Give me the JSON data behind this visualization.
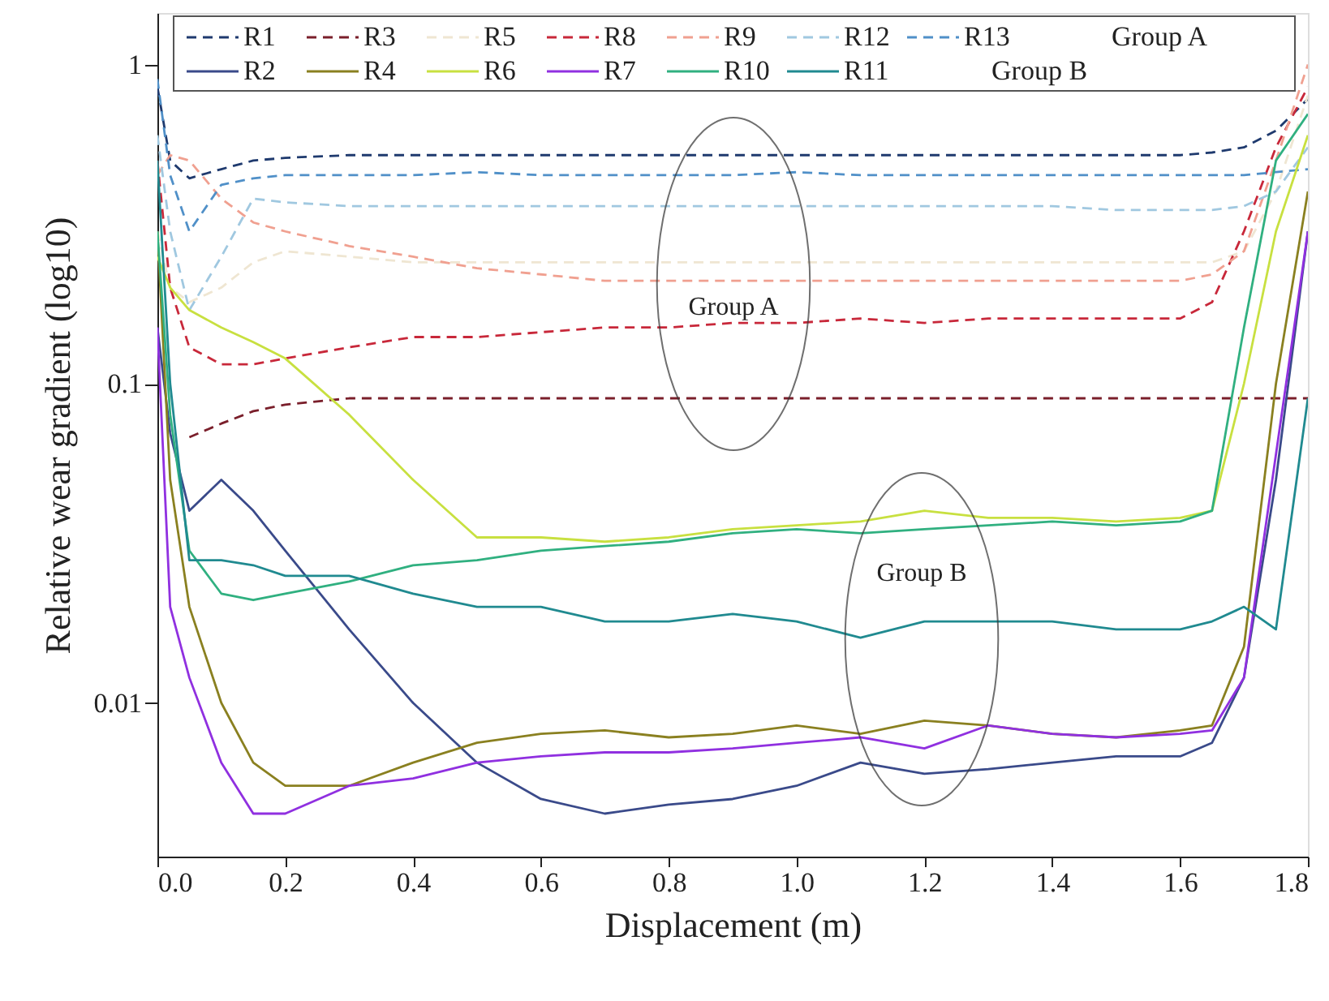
{
  "chart_data": {
    "type": "line",
    "xlabel": "Displacement (m)",
    "ylabel": "Relative wear gradient (log10)",
    "x": [
      0,
      0.02,
      0.05,
      0.1,
      0.15,
      0.2,
      0.3,
      0.4,
      0.5,
      0.6,
      0.7,
      0.8,
      0.9,
      1.0,
      1.1,
      1.2,
      1.3,
      1.4,
      1.5,
      1.6,
      1.65,
      1.7,
      1.75,
      1.8
    ],
    "series": [
      {
        "name": "R1",
        "color": "#1f3a6e",
        "line_style": "dashed",
        "values": [
          0.85,
          0.5,
          0.44,
          0.47,
          0.5,
          0.51,
          0.52,
          0.52,
          0.52,
          0.52,
          0.52,
          0.52,
          0.52,
          0.52,
          0.52,
          0.52,
          0.52,
          0.52,
          0.52,
          0.52,
          0.53,
          0.55,
          0.62,
          0.78
        ]
      },
      {
        "name": "R3",
        "color": "#7a1f2b",
        "line_style": "dashed",
        "values": [
          null,
          null,
          0.068,
          0.075,
          0.082,
          0.086,
          0.09,
          0.09,
          0.09,
          0.09,
          0.09,
          0.09,
          0.09,
          0.09,
          0.09,
          0.09,
          0.09,
          0.09,
          0.09,
          0.09,
          0.09,
          0.09,
          0.09,
          0.09
        ]
      },
      {
        "name": "R5",
        "color": "#efe6d2",
        "line_style": "dashed",
        "values": [
          0.3,
          0.2,
          0.18,
          0.2,
          0.24,
          0.26,
          0.25,
          0.24,
          0.24,
          0.24,
          0.24,
          0.24,
          0.24,
          0.24,
          0.24,
          0.24,
          0.24,
          0.24,
          0.24,
          0.24,
          0.24,
          0.26,
          0.4,
          0.8
        ]
      },
      {
        "name": "R8",
        "color": "#c8283a",
        "line_style": "dashed",
        "values": [
          0.5,
          0.2,
          0.13,
          0.115,
          0.115,
          0.12,
          0.13,
          0.14,
          0.14,
          0.145,
          0.15,
          0.15,
          0.155,
          0.155,
          0.16,
          0.155,
          0.16,
          0.16,
          0.16,
          0.16,
          0.18,
          0.3,
          0.55,
          0.85
        ]
      },
      {
        "name": "R9",
        "color": "#f0a090",
        "line_style": "dashed",
        "values": [
          0.45,
          0.52,
          0.5,
          0.38,
          0.32,
          0.3,
          0.27,
          0.25,
          0.23,
          0.22,
          0.21,
          0.21,
          0.21,
          0.21,
          0.21,
          0.21,
          0.21,
          0.21,
          0.21,
          0.21,
          0.22,
          0.26,
          0.5,
          1.0
        ]
      },
      {
        "name": "R12",
        "color": "#a0c8e0",
        "line_style": "dashed",
        "values": [
          0.6,
          0.3,
          0.17,
          0.25,
          0.38,
          0.37,
          0.36,
          0.36,
          0.36,
          0.36,
          0.36,
          0.36,
          0.36,
          0.36,
          0.36,
          0.36,
          0.36,
          0.36,
          0.35,
          0.35,
          0.35,
          0.36,
          0.4,
          0.55
        ]
      },
      {
        "name": "R13",
        "color": "#5090c8",
        "line_style": "dashed",
        "values": [
          0.9,
          0.45,
          0.3,
          0.42,
          0.44,
          0.45,
          0.45,
          0.45,
          0.46,
          0.45,
          0.45,
          0.45,
          0.45,
          0.46,
          0.45,
          0.45,
          0.45,
          0.45,
          0.45,
          0.45,
          0.45,
          0.45,
          0.46,
          0.47
        ]
      },
      {
        "name": "R2",
        "color": "#3a4a8a",
        "line_style": "solid",
        "values": [
          0.15,
          0.07,
          0.04,
          0.05,
          0.04,
          0.03,
          0.017,
          0.01,
          0.0065,
          0.005,
          0.0045,
          0.0048,
          0.005,
          0.0055,
          0.0065,
          0.006,
          0.0062,
          0.0065,
          0.0068,
          0.0068,
          0.0075,
          0.012,
          0.05,
          0.3
        ]
      },
      {
        "name": "R4",
        "color": "#8a8020",
        "line_style": "solid",
        "values": [
          0.3,
          0.05,
          0.02,
          0.01,
          0.0065,
          0.0055,
          0.0055,
          0.0065,
          0.0075,
          0.008,
          0.0082,
          0.0078,
          0.008,
          0.0085,
          0.008,
          0.0088,
          0.0085,
          0.008,
          0.0078,
          0.0082,
          0.0085,
          0.015,
          0.1,
          0.4
        ]
      },
      {
        "name": "R6",
        "color": "#c8e040",
        "line_style": "solid",
        "values": [
          0.25,
          0.2,
          0.17,
          0.15,
          0.135,
          0.12,
          0.08,
          0.05,
          0.033,
          0.033,
          0.032,
          0.033,
          0.035,
          0.036,
          0.037,
          0.04,
          0.038,
          0.038,
          0.037,
          0.038,
          0.04,
          0.1,
          0.3,
          0.6
        ]
      },
      {
        "name": "R7",
        "color": "#9030e0",
        "line_style": "solid",
        "values": [
          0.15,
          0.02,
          0.012,
          0.0065,
          0.0045,
          0.0045,
          0.0055,
          0.0058,
          0.0065,
          0.0068,
          0.007,
          0.007,
          0.0072,
          0.0075,
          0.0078,
          0.0072,
          0.0085,
          0.008,
          0.0078,
          0.008,
          0.0082,
          0.012,
          0.06,
          0.3
        ]
      },
      {
        "name": "R10",
        "color": "#30b080",
        "line_style": "solid",
        "values": [
          0.3,
          0.08,
          0.03,
          0.022,
          0.021,
          0.022,
          0.024,
          0.027,
          0.028,
          0.03,
          0.031,
          0.032,
          0.034,
          0.035,
          0.034,
          0.035,
          0.036,
          0.037,
          0.036,
          0.037,
          0.04,
          0.15,
          0.5,
          0.7
        ]
      },
      {
        "name": "R11",
        "color": "#208a90",
        "line_style": "solid",
        "values": [
          0.5,
          0.1,
          0.028,
          0.028,
          0.027,
          0.025,
          0.025,
          0.022,
          0.02,
          0.02,
          0.018,
          0.018,
          0.019,
          0.018,
          0.016,
          0.018,
          0.018,
          0.018,
          0.017,
          0.017,
          0.018,
          0.02,
          0.017,
          0.09
        ]
      }
    ],
    "log": "y",
    "legend": "top",
    "grid": false,
    "xlim": [
      0,
      1.8
    ],
    "ylim": [
      0.0033,
      1.45
    ],
    "xticks": [
      {
        "value": 0,
        "label": "0.0"
      },
      0.2,
      0.4,
      0.6,
      0.8,
      {
        "value": 1.0,
        "label": "1.0"
      },
      1.2,
      1.4,
      1.6,
      1.8
    ],
    "yticks": [
      0.01,
      0.1,
      1
    ],
    "annotations": [
      "Group A",
      "Group B",
      "Group A",
      "Group B"
    ]
  }
}
